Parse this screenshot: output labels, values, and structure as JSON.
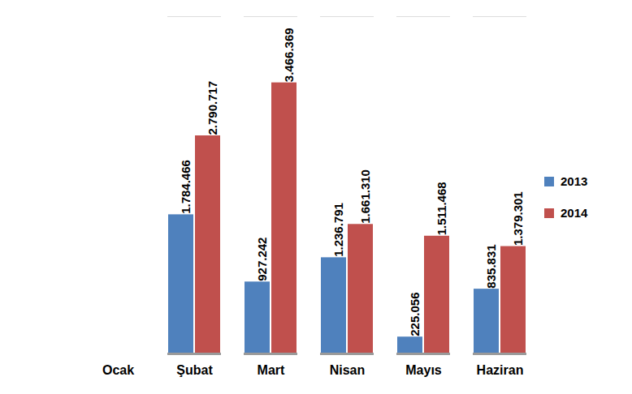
{
  "chart_data": {
    "type": "bar",
    "categories": [
      "Ocak",
      "Şubat",
      "Mart",
      "Nisan",
      "Mayıs",
      "Haziran"
    ],
    "series": [
      {
        "name": "2013",
        "color": "#4F81BD",
        "values": [
          null,
          1784466,
          927242,
          1236791,
          225056,
          835831
        ],
        "value_labels": [
          null,
          "1.784.466",
          "927.242",
          "1.236.791",
          "225.056",
          "835.831"
        ]
      },
      {
        "name": "2014",
        "color": "#C0504D",
        "values": [
          null,
          2790717,
          3466369,
          1661310,
          1511468,
          1379301
        ],
        "value_labels": [
          null,
          "2.790.717",
          "3.466.369",
          "1.661.310",
          "1.511.468",
          "1.379.301"
        ]
      }
    ],
    "ylim": [
      0,
      4300000
    ],
    "yticks": [],
    "grid": false,
    "legend": "right",
    "data_labels": true,
    "tick_labels": "x"
  }
}
